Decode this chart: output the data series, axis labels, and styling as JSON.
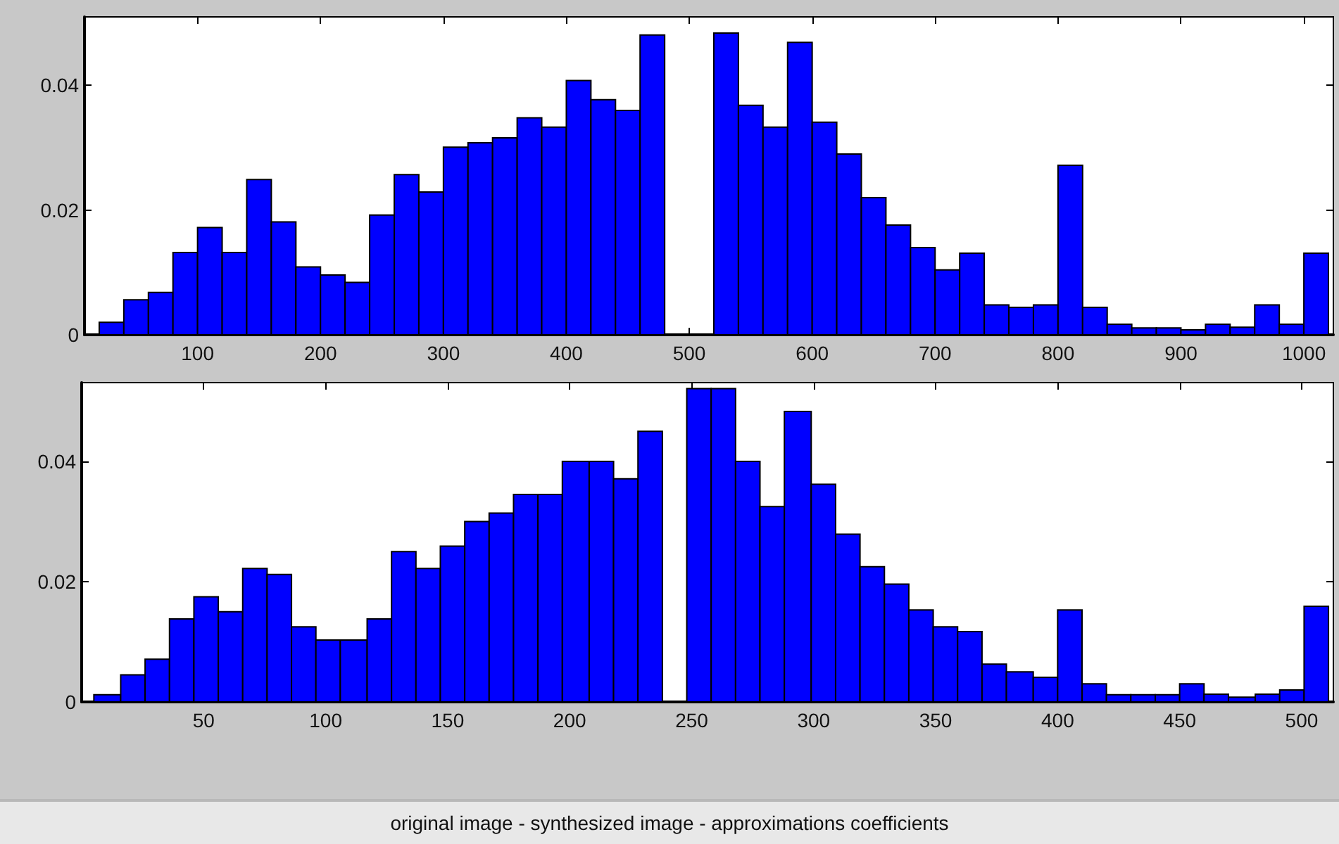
{
  "chart_data": [
    {
      "type": "histogram",
      "color": "#0000ff",
      "bins": [
        20,
        40,
        60,
        80,
        100,
        120,
        140,
        160,
        180,
        200,
        220,
        240,
        260,
        280,
        300,
        320,
        340,
        360,
        380,
        400,
        420,
        440,
        460,
        480,
        500,
        520,
        540,
        560,
        580,
        600,
        620,
        640,
        660,
        680,
        700,
        720,
        740,
        760,
        780,
        800,
        820,
        840,
        860,
        880,
        900,
        920,
        940,
        960,
        980,
        1000,
        1020
      ],
      "values": [
        0.002,
        0.0056,
        0.0068,
        0.0132,
        0.0172,
        0.0132,
        0.0249,
        0.0181,
        0.0109,
        0.0096,
        0.0084,
        0.0192,
        0.0257,
        0.0229,
        0.0301,
        0.0308,
        0.0316,
        0.0348,
        0.0333,
        0.0408,
        0.0377,
        0.036,
        0.0481,
        null,
        null,
        0.0484,
        0.0368,
        0.0333,
        0.0469,
        0.0341,
        0.029,
        0.022,
        0.0176,
        0.014,
        0.0104,
        0.0131,
        0.0048,
        0.0044,
        0.0048,
        0.0272,
        0.0044,
        0.0017,
        0.0011,
        0.0011,
        0.0008,
        0.0017,
        0.0012,
        0.0048,
        0.0017,
        0.0131
      ],
      "xlim": [
        8,
        1024
      ],
      "xticks": [
        100,
        200,
        300,
        400,
        500,
        600,
        700,
        800,
        900,
        1000
      ],
      "ylim": [
        0,
        0.051
      ],
      "yticks": [
        0,
        0.02,
        0.04
      ],
      "grid": false
    },
    {
      "type": "histogram",
      "color": "#0000ff",
      "bins": [
        5,
        16,
        26,
        36,
        46,
        56,
        66,
        76,
        86,
        96,
        106,
        117,
        127,
        137,
        147,
        157,
        167,
        177,
        187,
        197,
        208,
        218,
        228,
        238,
        248,
        258,
        268,
        278,
        288,
        299,
        309,
        319,
        329,
        339,
        349,
        359,
        369,
        379,
        390,
        400,
        410,
        420,
        430,
        440,
        450,
        460,
        470,
        481,
        491,
        501,
        511
      ],
      "values": [
        0.0012,
        0.0045,
        0.0071,
        0.0138,
        0.0175,
        0.015,
        0.0222,
        0.0212,
        0.0125,
        0.0103,
        0.0103,
        0.0138,
        0.025,
        0.0222,
        0.0259,
        0.03,
        0.0314,
        0.0345,
        0.0345,
        0.04,
        0.04,
        0.0371,
        0.045,
        null,
        0.0521,
        0.0521,
        0.04,
        0.0325,
        0.0483,
        0.0362,
        0.0279,
        0.0225,
        0.0196,
        0.0153,
        0.0125,
        0.0117,
        0.0063,
        0.005,
        0.0041,
        0.0153,
        0.003,
        0.0012,
        0.0012,
        0.0012,
        0.003,
        0.0013,
        0.0008,
        0.0013,
        0.002,
        0.0159
      ],
      "xlim": [
        0,
        513
      ],
      "xticks": [
        50,
        100,
        150,
        200,
        250,
        300,
        350,
        400,
        450,
        500
      ],
      "ylim": [
        0,
        0.0531
      ],
      "yticks": [
        0,
        0.02,
        0.04
      ],
      "grid": false,
      "annotations": [
        "original image - synthesized image - approximations coefficients"
      ]
    }
  ]
}
